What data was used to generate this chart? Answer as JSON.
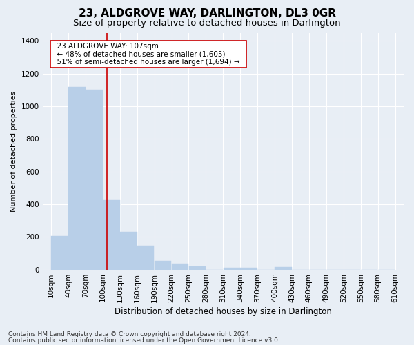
{
  "title": "23, ALDGROVE WAY, DARLINGTON, DL3 0GR",
  "subtitle": "Size of property relative to detached houses in Darlington",
  "xlabel": "Distribution of detached houses by size in Darlington",
  "ylabel": "Number of detached properties",
  "footer_line1": "Contains HM Land Registry data © Crown copyright and database right 2024.",
  "footer_line2": "Contains public sector information licensed under the Open Government Licence v3.0.",
  "annotation_line1": "23 ALDGROVE WAY: 107sqm",
  "annotation_line2": "← 48% of detached houses are smaller (1,605)",
  "annotation_line3": "51% of semi-detached houses are larger (1,694) →",
  "bar_edges": [
    10,
    40,
    70,
    100,
    130,
    160,
    190,
    220,
    250,
    280,
    310,
    340,
    370,
    400,
    430,
    460,
    490,
    520,
    550,
    580,
    610
  ],
  "bar_heights": [
    205,
    1120,
    1100,
    425,
    230,
    145,
    55,
    35,
    20,
    0,
    10,
    10,
    0,
    15,
    0,
    0,
    0,
    0,
    0,
    0
  ],
  "bar_color": "#b8cfe8",
  "bar_edgecolor": "#b8cfe8",
  "vline_color": "#cc0000",
  "vline_x": 107,
  "ylim": [
    0,
    1450
  ],
  "yticks": [
    0,
    200,
    400,
    600,
    800,
    1000,
    1200,
    1400
  ],
  "bg_color": "#e8eef5",
  "plot_bg_color": "#e8eef5",
  "grid_color": "#ffffff",
  "annotation_box_edgecolor": "#cc0000",
  "annotation_box_facecolor": "#ffffff",
  "title_fontsize": 11,
  "subtitle_fontsize": 9.5,
  "axis_label_fontsize": 8,
  "tick_fontsize": 7.5,
  "annotation_fontsize": 7.5,
  "footer_fontsize": 6.5
}
